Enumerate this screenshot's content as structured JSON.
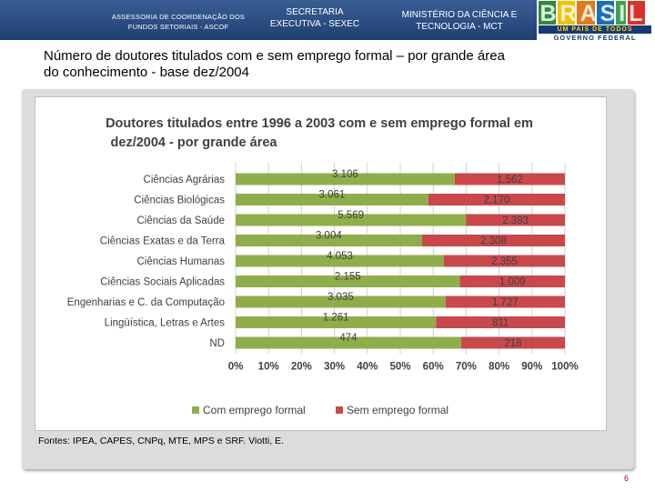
{
  "header": {
    "left_line1": "ASSESSORIA DE COORDENAÇÃO DOS",
    "left_line2": "FUNDOS SETORIAIS - ASCOF",
    "mid_line1": "SECRETARIA",
    "mid_line2": "EXECUTIVA - SEXEC",
    "right_line1": "MINISTÉRIO DA CIÊNCIA E",
    "right_line2": "TECNOLOGIA - MCT"
  },
  "logo": {
    "word": "BRASIL",
    "tagline": "UM PAÍS DE TODOS",
    "government": "GOVERNO FEDERAL"
  },
  "slide": {
    "title_line1": "Número de doutores titulados com e sem emprego formal – por grande área",
    "title_line2": "do conhecimento - base dez/2004",
    "source": "Fontes: IPEA, CAPES, CNPq, MTE, MPS e SRF. Viotti, E.",
    "page_number": "6"
  },
  "colors": {
    "series_employed": "#8fae4b",
    "series_unemployed": "#c9484c"
  },
  "chart_data": {
    "type": "bar",
    "orientation": "horizontal",
    "stacked": "percent",
    "title_line1": "Doutores titulados entre 1996 a 2003 com e sem emprego formal em",
    "title_line2": "dez/2004 - por grande área",
    "categories": [
      "Ciências Agrárias",
      "Ciências Biológicas",
      "Ciências da Saúde",
      "Ciências Exatas e da Terra",
      "Ciências Humanas",
      "Ciências Sociais Aplicadas",
      "Engenharias e C. da Computação",
      "Lingüística, Letras e Artes",
      "ND"
    ],
    "series": [
      {
        "name": "Com emprego formal",
        "values": [
          3106,
          3061,
          5569,
          3004,
          4053,
          2155,
          3035,
          1261,
          474
        ],
        "labels": [
          "3.106",
          "3.061",
          "5.569",
          "3.004",
          "4.053",
          "2.155",
          "3.035",
          "1.261",
          "474"
        ]
      },
      {
        "name": "Sem emprego formal",
        "values": [
          1562,
          2170,
          2393,
          2308,
          2355,
          1009,
          1727,
          811,
          218
        ],
        "labels": [
          "1.562",
          "2.170",
          "2.393",
          "2.308",
          "2.355",
          "1.009",
          "1.727",
          "811",
          "218"
        ]
      }
    ],
    "x_ticks": [
      "0%",
      "10%",
      "20%",
      "30%",
      "40%",
      "50%",
      "60%",
      "70%",
      "80%",
      "90%",
      "100%"
    ],
    "xlim": [
      0,
      100
    ],
    "legend_position": "bottom"
  }
}
